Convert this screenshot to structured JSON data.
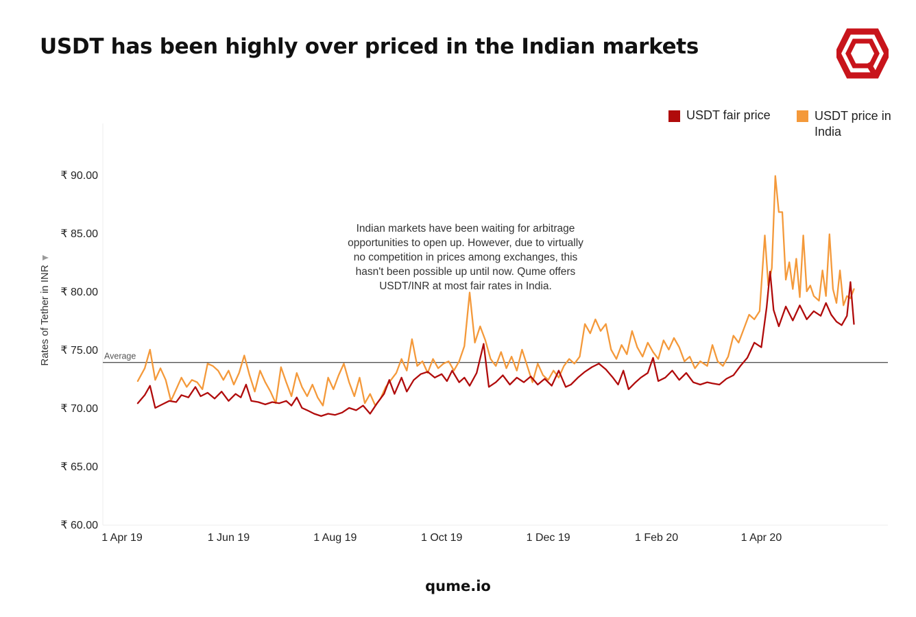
{
  "page": {
    "title": "USDT has been highly over priced in the Indian markets",
    "footer": "qume.io",
    "logo_icon": "qume-hexagon-q-logo-icon"
  },
  "annotation": {
    "text": "Indian markets have been waiting for arbitrage opportunities to open up. However, due to virtually no competition in prices among exchanges, this hasn't been possible up until now. Qume offers USDT/INR at most fair rates in India."
  },
  "legend": {
    "items": [
      {
        "label": "USDT fair price",
        "color": "#b00b0b"
      },
      {
        "label": "USDT price in India",
        "color": "#f4993a"
      }
    ]
  },
  "chart_data": {
    "type": "line",
    "ylabel": "Rates of Tether in INR",
    "ylabel_icon": "pin-icon",
    "y_ticks": [
      {
        "value": 60,
        "label": "₹ 60.00"
      },
      {
        "value": 65,
        "label": "₹ 65.00"
      },
      {
        "value": 70,
        "label": "₹ 70.00"
      },
      {
        "value": 75,
        "label": "₹ 75.00"
      },
      {
        "value": 80,
        "label": "₹ 80.00"
      },
      {
        "value": 85,
        "label": "₹ 85.00"
      },
      {
        "value": 90,
        "label": "₹ 90.00"
      }
    ],
    "x_ticks": [
      {
        "date": "2019-04-01",
        "label": "1 Apr 19"
      },
      {
        "date": "2019-06-01",
        "label": "1 Jun 19"
      },
      {
        "date": "2019-08-01",
        "label": "1 Aug 19"
      },
      {
        "date": "2019-10-01",
        "label": "1 Oct 19"
      },
      {
        "date": "2019-12-01",
        "label": "1 Dec 19"
      },
      {
        "date": "2020-02-01",
        "label": "1 Feb 20"
      },
      {
        "date": "2020-04-01",
        "label": "1 Apr 20"
      }
    ],
    "xlim": [
      "2019-04-01",
      "2020-05-25"
    ],
    "ylim": [
      59.5,
      94.5
    ],
    "average": {
      "label": "Average",
      "value": 73.9
    },
    "grid": false,
    "legend_position": "top-right",
    "series": [
      {
        "name": "USDT fair price",
        "color": "#b00b0b",
        "points": [
          [
            "2019-04-10",
            70.4
          ],
          [
            "2019-04-14",
            71.1
          ],
          [
            "2019-04-17",
            71.9
          ],
          [
            "2019-04-20",
            70.0
          ],
          [
            "2019-04-24",
            70.3
          ],
          [
            "2019-04-28",
            70.6
          ],
          [
            "2019-05-02",
            70.5
          ],
          [
            "2019-05-05",
            71.1
          ],
          [
            "2019-05-09",
            70.9
          ],
          [
            "2019-05-13",
            71.8
          ],
          [
            "2019-05-16",
            71.0
          ],
          [
            "2019-05-20",
            71.3
          ],
          [
            "2019-05-24",
            70.8
          ],
          [
            "2019-05-28",
            71.4
          ],
          [
            "2019-06-01",
            70.6
          ],
          [
            "2019-06-05",
            71.2
          ],
          [
            "2019-06-08",
            70.9
          ],
          [
            "2019-06-11",
            72.0
          ],
          [
            "2019-06-14",
            70.6
          ],
          [
            "2019-06-18",
            70.5
          ],
          [
            "2019-06-22",
            70.3
          ],
          [
            "2019-06-26",
            70.5
          ],
          [
            "2019-06-30",
            70.4
          ],
          [
            "2019-07-04",
            70.6
          ],
          [
            "2019-07-07",
            70.2
          ],
          [
            "2019-07-10",
            70.9
          ],
          [
            "2019-07-13",
            70.0
          ],
          [
            "2019-07-16",
            69.8
          ],
          [
            "2019-07-20",
            69.5
          ],
          [
            "2019-07-24",
            69.3
          ],
          [
            "2019-07-28",
            69.5
          ],
          [
            "2019-08-01",
            69.4
          ],
          [
            "2019-08-05",
            69.6
          ],
          [
            "2019-08-09",
            70.0
          ],
          [
            "2019-08-13",
            69.8
          ],
          [
            "2019-08-17",
            70.2
          ],
          [
            "2019-08-21",
            69.5
          ],
          [
            "2019-08-25",
            70.4
          ],
          [
            "2019-08-29",
            71.2
          ],
          [
            "2019-09-01",
            72.4
          ],
          [
            "2019-09-04",
            71.2
          ],
          [
            "2019-09-08",
            72.6
          ],
          [
            "2019-09-11",
            71.4
          ],
          [
            "2019-09-15",
            72.4
          ],
          [
            "2019-09-19",
            72.9
          ],
          [
            "2019-09-23",
            73.1
          ],
          [
            "2019-09-27",
            72.6
          ],
          [
            "2019-10-01",
            72.9
          ],
          [
            "2019-10-04",
            72.3
          ],
          [
            "2019-10-07",
            73.2
          ],
          [
            "2019-10-11",
            72.2
          ],
          [
            "2019-10-14",
            72.6
          ],
          [
            "2019-10-17",
            71.9
          ],
          [
            "2019-10-21",
            73.0
          ],
          [
            "2019-10-25",
            75.5
          ],
          [
            "2019-10-28",
            71.8
          ],
          [
            "2019-11-01",
            72.2
          ],
          [
            "2019-11-05",
            72.8
          ],
          [
            "2019-11-09",
            72.0
          ],
          [
            "2019-11-13",
            72.6
          ],
          [
            "2019-11-17",
            72.2
          ],
          [
            "2019-11-21",
            72.7
          ],
          [
            "2019-11-25",
            72.0
          ],
          [
            "2019-11-29",
            72.5
          ],
          [
            "2019-12-03",
            71.9
          ],
          [
            "2019-12-07",
            73.2
          ],
          [
            "2019-12-11",
            71.8
          ],
          [
            "2019-12-14",
            72.0
          ],
          [
            "2019-12-18",
            72.6
          ],
          [
            "2019-12-22",
            73.1
          ],
          [
            "2019-12-26",
            73.5
          ],
          [
            "2019-12-30",
            73.8
          ],
          [
            "2020-01-03",
            73.3
          ],
          [
            "2020-01-07",
            72.6
          ],
          [
            "2020-01-10",
            72.0
          ],
          [
            "2020-01-13",
            73.2
          ],
          [
            "2020-01-16",
            71.6
          ],
          [
            "2020-01-20",
            72.2
          ],
          [
            "2020-01-23",
            72.6
          ],
          [
            "2020-01-27",
            73.0
          ],
          [
            "2020-01-30",
            74.3
          ],
          [
            "2020-02-02",
            72.3
          ],
          [
            "2020-02-06",
            72.6
          ],
          [
            "2020-02-10",
            73.2
          ],
          [
            "2020-02-14",
            72.4
          ],
          [
            "2020-02-18",
            73.0
          ],
          [
            "2020-02-22",
            72.2
          ],
          [
            "2020-02-26",
            72.0
          ],
          [
            "2020-03-01",
            72.2
          ],
          [
            "2020-03-04",
            72.1
          ],
          [
            "2020-03-08",
            72.0
          ],
          [
            "2020-03-12",
            72.5
          ],
          [
            "2020-03-16",
            72.8
          ],
          [
            "2020-03-20",
            73.6
          ],
          [
            "2020-03-24",
            74.3
          ],
          [
            "2020-03-28",
            75.6
          ],
          [
            "2020-04-01",
            75.2
          ],
          [
            "2020-04-04",
            78.6
          ],
          [
            "2020-04-06",
            81.7
          ],
          [
            "2020-04-08",
            78.4
          ],
          [
            "2020-04-11",
            77.0
          ],
          [
            "2020-04-15",
            78.7
          ],
          [
            "2020-04-19",
            77.5
          ],
          [
            "2020-04-23",
            78.8
          ],
          [
            "2020-04-27",
            77.6
          ],
          [
            "2020-05-01",
            78.3
          ],
          [
            "2020-05-05",
            77.9
          ],
          [
            "2020-05-08",
            79.0
          ],
          [
            "2020-05-11",
            78.0
          ],
          [
            "2020-05-14",
            77.4
          ],
          [
            "2020-05-17",
            77.1
          ],
          [
            "2020-05-20",
            77.9
          ],
          [
            "2020-05-22",
            80.8
          ],
          [
            "2020-05-24",
            77.2
          ]
        ]
      },
      {
        "name": "USDT price in India",
        "color": "#f4993a",
        "points": [
          [
            "2019-04-10",
            72.3
          ],
          [
            "2019-04-14",
            73.4
          ],
          [
            "2019-04-17",
            75.0
          ],
          [
            "2019-04-20",
            72.4
          ],
          [
            "2019-04-23",
            73.4
          ],
          [
            "2019-04-26",
            72.4
          ],
          [
            "2019-04-29",
            70.6
          ],
          [
            "2019-05-02",
            71.6
          ],
          [
            "2019-05-05",
            72.6
          ],
          [
            "2019-05-08",
            71.8
          ],
          [
            "2019-05-11",
            72.4
          ],
          [
            "2019-05-14",
            72.2
          ],
          [
            "2019-05-17",
            71.6
          ],
          [
            "2019-05-20",
            73.8
          ],
          [
            "2019-05-23",
            73.6
          ],
          [
            "2019-05-26",
            73.2
          ],
          [
            "2019-05-29",
            72.4
          ],
          [
            "2019-06-01",
            73.2
          ],
          [
            "2019-06-04",
            72.0
          ],
          [
            "2019-06-07",
            73.0
          ],
          [
            "2019-06-10",
            74.5
          ],
          [
            "2019-06-13",
            72.8
          ],
          [
            "2019-06-16",
            71.4
          ],
          [
            "2019-06-19",
            73.2
          ],
          [
            "2019-06-22",
            72.2
          ],
          [
            "2019-06-25",
            71.4
          ],
          [
            "2019-06-28",
            70.4
          ],
          [
            "2019-07-01",
            73.5
          ],
          [
            "2019-07-04",
            72.2
          ],
          [
            "2019-07-07",
            71.0
          ],
          [
            "2019-07-10",
            73.0
          ],
          [
            "2019-07-13",
            71.8
          ],
          [
            "2019-07-16",
            71.0
          ],
          [
            "2019-07-19",
            72.0
          ],
          [
            "2019-07-22",
            70.9
          ],
          [
            "2019-07-25",
            70.2
          ],
          [
            "2019-07-28",
            72.6
          ],
          [
            "2019-07-31",
            71.6
          ],
          [
            "2019-08-03",
            72.8
          ],
          [
            "2019-08-06",
            73.8
          ],
          [
            "2019-08-09",
            72.2
          ],
          [
            "2019-08-12",
            71.0
          ],
          [
            "2019-08-15",
            72.6
          ],
          [
            "2019-08-18",
            70.4
          ],
          [
            "2019-08-21",
            71.2
          ],
          [
            "2019-08-24",
            70.2
          ],
          [
            "2019-08-27",
            70.8
          ],
          [
            "2019-08-30",
            71.8
          ],
          [
            "2019-09-02",
            72.4
          ],
          [
            "2019-09-05",
            73.0
          ],
          [
            "2019-09-08",
            74.2
          ],
          [
            "2019-09-11",
            73.2
          ],
          [
            "2019-09-14",
            75.9
          ],
          [
            "2019-09-17",
            73.6
          ],
          [
            "2019-09-20",
            74.0
          ],
          [
            "2019-09-23",
            73.0
          ],
          [
            "2019-09-26",
            74.2
          ],
          [
            "2019-09-29",
            73.4
          ],
          [
            "2019-10-02",
            73.8
          ],
          [
            "2019-10-05",
            74.0
          ],
          [
            "2019-10-08",
            73.2
          ],
          [
            "2019-10-11",
            74.0
          ],
          [
            "2019-10-14",
            75.3
          ],
          [
            "2019-10-17",
            79.9
          ],
          [
            "2019-10-20",
            75.6
          ],
          [
            "2019-10-23",
            77.0
          ],
          [
            "2019-10-26",
            75.8
          ],
          [
            "2019-10-29",
            74.2
          ],
          [
            "2019-11-01",
            73.6
          ],
          [
            "2019-11-04",
            74.8
          ],
          [
            "2019-11-07",
            73.4
          ],
          [
            "2019-11-10",
            74.4
          ],
          [
            "2019-11-13",
            73.2
          ],
          [
            "2019-11-16",
            75.0
          ],
          [
            "2019-11-19",
            73.6
          ],
          [
            "2019-11-22",
            72.2
          ],
          [
            "2019-11-25",
            73.8
          ],
          [
            "2019-11-28",
            72.8
          ],
          [
            "2019-12-01",
            72.4
          ],
          [
            "2019-12-04",
            73.2
          ],
          [
            "2019-12-07",
            72.6
          ],
          [
            "2019-12-10",
            73.6
          ],
          [
            "2019-12-13",
            74.2
          ],
          [
            "2019-12-16",
            73.8
          ],
          [
            "2019-12-19",
            74.4
          ],
          [
            "2019-12-22",
            77.2
          ],
          [
            "2019-12-25",
            76.4
          ],
          [
            "2019-12-28",
            77.6
          ],
          [
            "2019-12-31",
            76.6
          ],
          [
            "2020-01-03",
            77.2
          ],
          [
            "2020-01-06",
            75.0
          ],
          [
            "2020-01-09",
            74.2
          ],
          [
            "2020-01-12",
            75.4
          ],
          [
            "2020-01-15",
            74.6
          ],
          [
            "2020-01-18",
            76.6
          ],
          [
            "2020-01-21",
            75.2
          ],
          [
            "2020-01-24",
            74.4
          ],
          [
            "2020-01-27",
            75.6
          ],
          [
            "2020-01-30",
            74.8
          ],
          [
            "2020-02-02",
            74.2
          ],
          [
            "2020-02-05",
            75.8
          ],
          [
            "2020-02-08",
            75.0
          ],
          [
            "2020-02-11",
            76.0
          ],
          [
            "2020-02-14",
            75.2
          ],
          [
            "2020-02-17",
            74.0
          ],
          [
            "2020-02-20",
            74.4
          ],
          [
            "2020-02-23",
            73.4
          ],
          [
            "2020-02-26",
            74.0
          ],
          [
            "2020-03-01",
            73.6
          ],
          [
            "2020-03-04",
            75.4
          ],
          [
            "2020-03-07",
            74.0
          ],
          [
            "2020-03-10",
            73.6
          ],
          [
            "2020-03-13",
            74.4
          ],
          [
            "2020-03-16",
            76.2
          ],
          [
            "2020-03-19",
            75.6
          ],
          [
            "2020-03-22",
            76.8
          ],
          [
            "2020-03-25",
            78.0
          ],
          [
            "2020-03-28",
            77.6
          ],
          [
            "2020-03-31",
            78.3
          ],
          [
            "2020-04-03",
            84.8
          ],
          [
            "2020-04-05",
            80.5
          ],
          [
            "2020-04-07",
            82.0
          ],
          [
            "2020-04-09",
            89.9
          ],
          [
            "2020-04-11",
            86.8
          ],
          [
            "2020-04-13",
            86.8
          ],
          [
            "2020-04-15",
            81.0
          ],
          [
            "2020-04-17",
            82.5
          ],
          [
            "2020-04-19",
            80.2
          ],
          [
            "2020-04-21",
            82.8
          ],
          [
            "2020-04-23",
            79.5
          ],
          [
            "2020-04-25",
            84.8
          ],
          [
            "2020-04-27",
            80.0
          ],
          [
            "2020-04-29",
            80.5
          ],
          [
            "2020-05-01",
            79.6
          ],
          [
            "2020-05-04",
            79.2
          ],
          [
            "2020-05-06",
            81.8
          ],
          [
            "2020-05-08",
            79.6
          ],
          [
            "2020-05-10",
            84.9
          ],
          [
            "2020-05-12",
            80.2
          ],
          [
            "2020-05-14",
            79.0
          ],
          [
            "2020-05-16",
            81.8
          ],
          [
            "2020-05-18",
            78.8
          ],
          [
            "2020-05-20",
            79.6
          ],
          [
            "2020-05-22",
            79.4
          ],
          [
            "2020-05-24",
            80.2
          ]
        ]
      }
    ]
  }
}
